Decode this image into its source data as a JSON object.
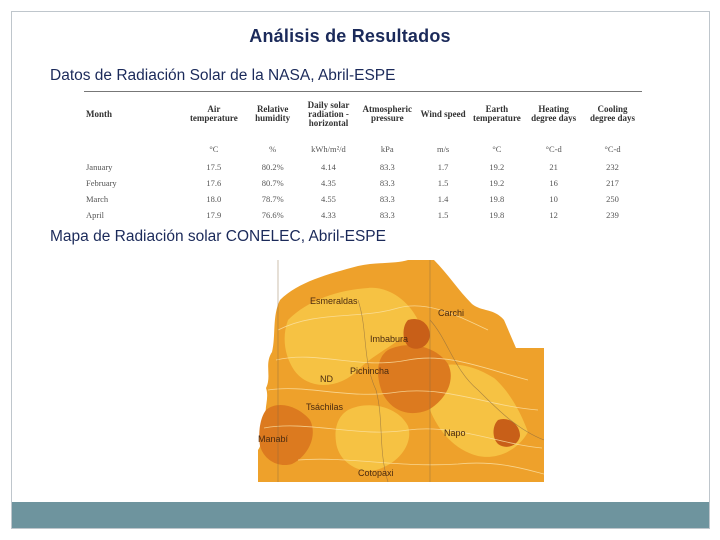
{
  "title": "Análisis de Resultados",
  "section_nasa": "Datos de Radiación Solar de la NASA, Abril-ESPE",
  "section_map": "Mapa de Radiación solar CONELEC, Abril-ESPE",
  "nasa_table": {
    "headers": [
      "Month",
      "Air temperature",
      "Relative humidity",
      "Daily solar radiation - horizontal",
      "Atmospheric pressure",
      "Wind speed",
      "Earth temperature",
      "Heating degree days",
      "Cooling degree days"
    ],
    "units": [
      "",
      "°C",
      "%",
      "kWh/m²/d",
      "kPa",
      "m/s",
      "°C",
      "°C-d",
      "°C-d"
    ],
    "rows": [
      [
        "January",
        "17.5",
        "80.2%",
        "4.14",
        "83.3",
        "1.7",
        "19.2",
        "21",
        "232"
      ],
      [
        "February",
        "17.6",
        "80.7%",
        "4.35",
        "83.3",
        "1.5",
        "19.2",
        "16",
        "217"
      ],
      [
        "March",
        "18.0",
        "78.7%",
        "4.55",
        "83.3",
        "1.4",
        "19.8",
        "10",
        "250"
      ],
      [
        "April",
        "17.9",
        "76.6%",
        "4.33",
        "83.3",
        "1.5",
        "19.8",
        "12",
        "239"
      ]
    ]
  },
  "map": {
    "labels": {
      "esmeraldas": "Esmeraldas",
      "imbabura": "Imbabura",
      "carchi": "Carchi",
      "pichincha": "Pichincha",
      "nd": "ND",
      "tsachilas": "Tsáchilas",
      "manabi": "Manabí",
      "napo": "Napo",
      "cotopaxi": "Cotopaxi"
    },
    "colors": {
      "light": "#f6c243",
      "mid": "#eea12b",
      "dark": "#dc7a1f",
      "deep": "#c85f18",
      "outside": "#ffffff"
    }
  }
}
